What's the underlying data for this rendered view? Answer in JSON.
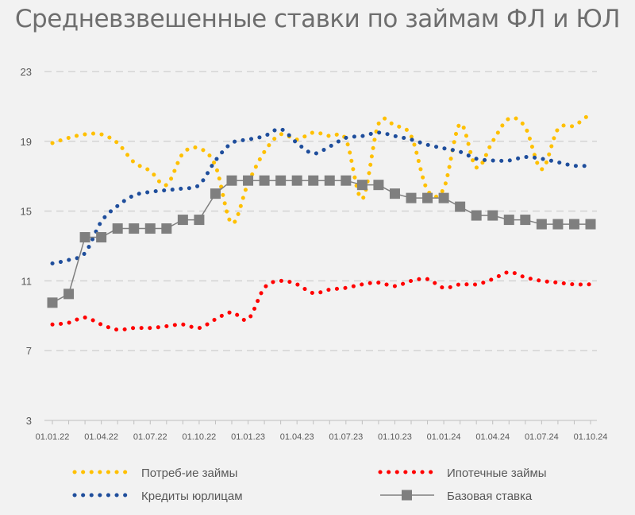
{
  "chart_data": {
    "type": "line",
    "title": "Средневзвешенные ставки по займам ФЛ и ЮЛ",
    "xlabel": "",
    "ylabel": "",
    "ylim": [
      3,
      23
    ],
    "yticks": [
      "3",
      "7",
      "11",
      "15",
      "19",
      "23"
    ],
    "x_tick_labels": [
      "01.01.22",
      "01.04.22",
      "01.07.22",
      "01.10.22",
      "01.01.23",
      "01.04.23",
      "01.07.23",
      "01.10.23",
      "01.01.24",
      "01.04.24",
      "01.07.24",
      "01.10.24"
    ],
    "grid": "horizontal dashed",
    "legend_position": "bottom",
    "series": [
      {
        "name": "Потреб-ие займы",
        "color": "#ffc000",
        "style": "dotted",
        "x": [
          0,
          1,
          2,
          3,
          4,
          5,
          6,
          7,
          8,
          9,
          10,
          11,
          12,
          13,
          14,
          15,
          16,
          17,
          18,
          19,
          20,
          21,
          22,
          23,
          24,
          25,
          26,
          27,
          28,
          29,
          30,
          31,
          32,
          33
        ],
        "values": [
          18.9,
          19.2,
          19.4,
          19.4,
          18.9,
          17.8,
          17.3,
          16.5,
          18.3,
          18.6,
          17.6,
          14.3,
          16.6,
          18.4,
          19.4,
          19.1,
          19.5,
          19.3,
          19.1,
          15.7,
          20.0,
          19.9,
          19.3,
          16.2,
          16.3,
          20.0,
          17.5,
          19.0,
          20.3,
          19.8,
          17.4,
          19.7,
          19.9,
          20.6
        ]
      },
      {
        "name": "Ипотечные займы",
        "color": "#ff0000",
        "style": "dotted",
        "x": [
          0,
          1,
          2,
          3,
          4,
          5,
          6,
          7,
          8,
          9,
          10,
          11,
          12,
          13,
          14,
          15,
          16,
          17,
          18,
          19,
          20,
          21,
          22,
          23,
          24,
          25,
          26,
          27,
          28,
          29,
          30,
          31,
          32,
          33
        ],
        "values": [
          8.5,
          8.6,
          8.9,
          8.5,
          8.2,
          8.3,
          8.3,
          8.4,
          8.5,
          8.3,
          8.8,
          9.2,
          8.8,
          10.6,
          11.0,
          10.8,
          10.3,
          10.5,
          10.6,
          10.8,
          10.9,
          10.7,
          11.0,
          11.1,
          10.6,
          10.8,
          10.8,
          11.1,
          11.5,
          11.2,
          11.0,
          10.9,
          10.8,
          10.8
        ]
      },
      {
        "name": "Кредиты юрлицам",
        "color": "#1f4e9c",
        "style": "dotted",
        "x": [
          0,
          1,
          2,
          3,
          4,
          5,
          6,
          7,
          8,
          9,
          10,
          11,
          12,
          13,
          14,
          15,
          16,
          17,
          18,
          19,
          20,
          21,
          22,
          23,
          24,
          25,
          26,
          27,
          28,
          29,
          30,
          31,
          32,
          33
        ],
        "values": [
          12.0,
          12.2,
          12.6,
          14.4,
          15.3,
          15.9,
          16.1,
          16.2,
          16.3,
          16.5,
          17.9,
          18.9,
          19.1,
          19.3,
          19.7,
          18.9,
          18.3,
          18.7,
          19.2,
          19.3,
          19.5,
          19.3,
          19.1,
          18.8,
          18.6,
          18.4,
          18.0,
          17.9,
          17.9,
          18.1,
          18.0,
          17.8,
          17.6,
          17.6
        ]
      },
      {
        "name": "Базовая ставка",
        "color": "#7f7f7f",
        "style": "line-square",
        "x": [
          0,
          1,
          2,
          3,
          4,
          5,
          6,
          7,
          8,
          9,
          10,
          11,
          12,
          13,
          14,
          15,
          16,
          17,
          18,
          19,
          20,
          21,
          22,
          23,
          24,
          25,
          26,
          27,
          28,
          29,
          30,
          31,
          32,
          33
        ],
        "values": [
          9.75,
          10.25,
          13.5,
          13.5,
          14.0,
          14.0,
          14.0,
          14.0,
          14.5,
          14.5,
          16.0,
          16.75,
          16.75,
          16.75,
          16.75,
          16.75,
          16.75,
          16.75,
          16.75,
          16.5,
          16.5,
          16.0,
          15.75,
          15.75,
          15.75,
          15.25,
          14.75,
          14.75,
          14.5,
          14.5,
          14.25,
          14.25,
          14.25,
          14.25
        ]
      }
    ]
  }
}
